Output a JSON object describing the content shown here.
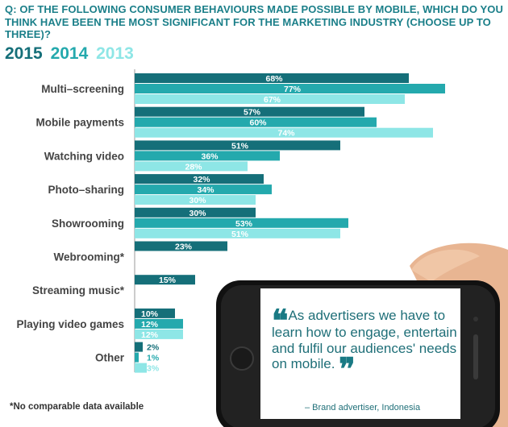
{
  "question": "Q: OF THE FOLLOWING CONSUMER BEHAVIOURS MADE POSSIBLE BY MOBILE, WHICH DO YOU THINK HAVE BEEN THE MOST SIGNIFICANT FOR THE MARKETING INDUSTRY (CHOOSE UP TO THREE)?",
  "footnote": "*No comparable data available",
  "quote": {
    "text": "As advertisers we have to learn how to engage, entertain and fulfil our audiences' needs on mobile.",
    "attribution": "– Brand advertiser, Indonesia"
  },
  "colors": {
    "2015": "#156f79",
    "2014": "#24a9ad",
    "2013": "#8ee6e6",
    "text": "#1b7f89",
    "label": "#444444"
  },
  "chart_data": {
    "type": "bar",
    "orientation": "horizontal",
    "categories": [
      "Multi–screening",
      "Mobile payments",
      "Watching video",
      "Photo–sharing",
      "Showrooming",
      "Webrooming*",
      "Streaming music*",
      "Playing video games",
      "Other"
    ],
    "series": [
      {
        "name": "2015",
        "values": [
          68,
          57,
          51,
          32,
          30,
          23,
          15,
          10,
          2
        ]
      },
      {
        "name": "2014",
        "values": [
          77,
          60,
          36,
          34,
          53,
          null,
          null,
          12,
          1
        ]
      },
      {
        "name": "2013",
        "values": [
          67,
          74,
          28,
          30,
          51,
          null,
          null,
          12,
          3
        ]
      }
    ],
    "value_suffix": "%",
    "legend": [
      "2015",
      "2014",
      "2013"
    ]
  }
}
